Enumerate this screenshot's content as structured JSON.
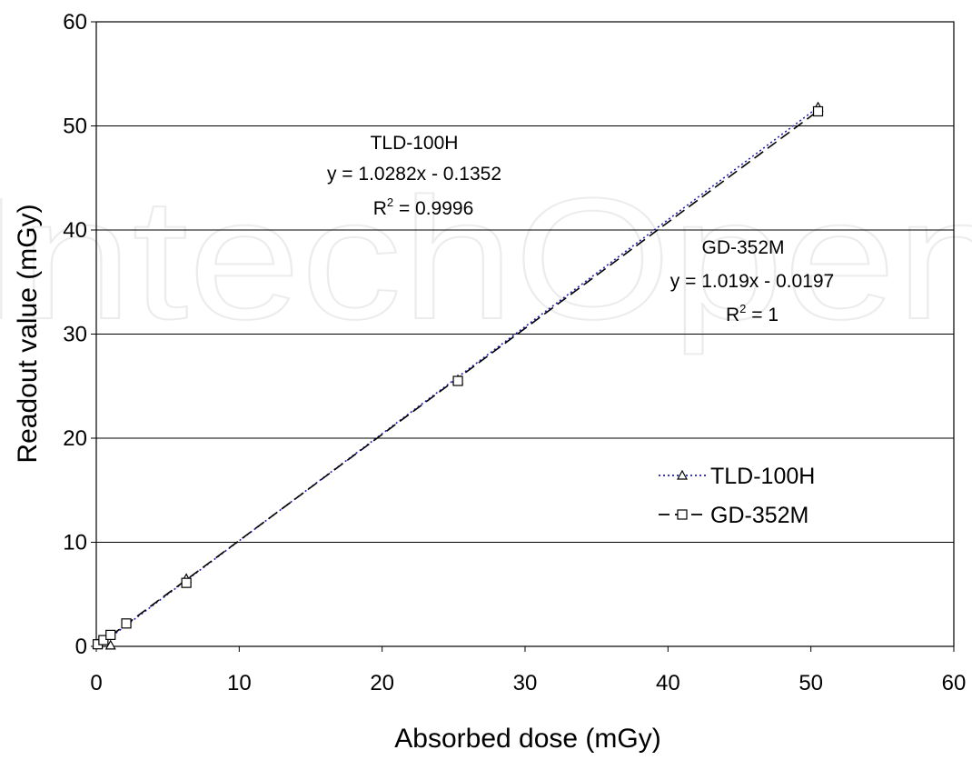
{
  "watermark": "IntechOpen",
  "chart_data": {
    "type": "scatter",
    "xlabel": "Absorbed dose (mGy)",
    "ylabel": "Readout value (mGy)",
    "xlim": [
      0,
      60
    ],
    "ylim": [
      0,
      60
    ],
    "xticks": [
      "0",
      "10",
      "20",
      "30",
      "40",
      "50",
      "60"
    ],
    "yticks": [
      "0",
      "10",
      "20",
      "30",
      "40",
      "50",
      "60"
    ],
    "grid": "horizontal",
    "legend_position": "lower-right",
    "series": [
      {
        "name": "TLD-100H",
        "marker": "triangle",
        "line": "dotted",
        "color": "#1f1fa0",
        "x": [
          0.1,
          1.0,
          6.3,
          25.3,
          50.5
        ],
        "y": [
          0.2,
          0.1,
          6.5,
          25.6,
          51.8
        ],
        "trend": {
          "equation": "y = 1.0282x - 0.1352",
          "r2_label": "R",
          "r2_sup": "2",
          "r2_value": " = 0.9996",
          "slope": 1.0282,
          "intercept": -0.1352
        }
      },
      {
        "name": "GD-352M",
        "marker": "square",
        "line": "dashed",
        "color": "#000000",
        "x": [
          0.1,
          0.5,
          1.0,
          2.1,
          6.3,
          25.3,
          50.5
        ],
        "y": [
          0.2,
          0.6,
          1.1,
          2.2,
          6.1,
          25.5,
          51.4
        ],
        "trend": {
          "equation": "y = 1.019x - 0.0197",
          "r2_label": "R",
          "r2_sup": "2",
          "r2_value": " = 1",
          "slope": 1.019,
          "intercept": -0.0197
        }
      }
    ]
  }
}
